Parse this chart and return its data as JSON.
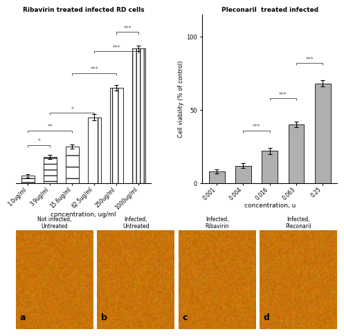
{
  "left_chart": {
    "title": "Ribavirin treated infected RD cells",
    "categories": [
      "1.0ug/ml",
      "3.9ug/ml",
      "15.6ug/ml",
      "62.5ug/ml",
      "250ug/ml",
      "1000ug/ml"
    ],
    "values": [
      5,
      18,
      25,
      45,
      65,
      92
    ],
    "errors": [
      1,
      1.5,
      1.5,
      2,
      2,
      2
    ],
    "xlabel": "concentration, ug/ml",
    "ylim": [
      0,
      115
    ],
    "bar_color": "white",
    "bar_edgecolor": "#222222",
    "significance": [
      {
        "bars": [
          0,
          1
        ],
        "label": "*",
        "y": 26
      },
      {
        "bars": [
          0,
          2
        ],
        "label": "**",
        "y": 36
      },
      {
        "bars": [
          1,
          3
        ],
        "label": "*",
        "y": 48
      },
      {
        "bars": [
          2,
          4
        ],
        "label": "***",
        "y": 75
      },
      {
        "bars": [
          3,
          5
        ],
        "label": "***",
        "y": 90
      },
      {
        "bars": [
          4,
          5
        ],
        "label": "***",
        "y": 103
      }
    ]
  },
  "right_chart": {
    "title": "Pleconaril  treated infected",
    "categories": [
      "0.001",
      "0.004",
      "0.016",
      "0.063",
      "0.25"
    ],
    "values": [
      8,
      12,
      22,
      40,
      68
    ],
    "errors": [
      1.5,
      1.5,
      2,
      2,
      2
    ],
    "xlabel": "concentration, u",
    "ylabel": "Cell viability (% of control)",
    "ylim": [
      0,
      115
    ],
    "bar_color": "#b0b0b0",
    "bar_edgecolor": "#222222",
    "yticks": [
      0,
      50,
      100
    ],
    "significance": [
      {
        "bars": [
          1,
          2
        ],
        "label": "***",
        "y": 36
      },
      {
        "bars": [
          2,
          3
        ],
        "label": "***",
        "y": 58
      },
      {
        "bars": [
          3,
          4
        ],
        "label": "***",
        "y": 82
      }
    ]
  },
  "bottom_panels": [
    {
      "label": "Not infected,\nUntreated",
      "letter": "a"
    },
    {
      "label": "Infected,\nUntreated",
      "letter": "b"
    },
    {
      "label": "Infected,\nRibavirin",
      "letter": "c"
    },
    {
      "label": "Infected,\nPleconaril",
      "letter": "d"
    }
  ],
  "micro_bg": "#c8740a",
  "micro_cell_color": "#a05508",
  "micro_highlight": "#e09030",
  "background_color": "#ffffff"
}
